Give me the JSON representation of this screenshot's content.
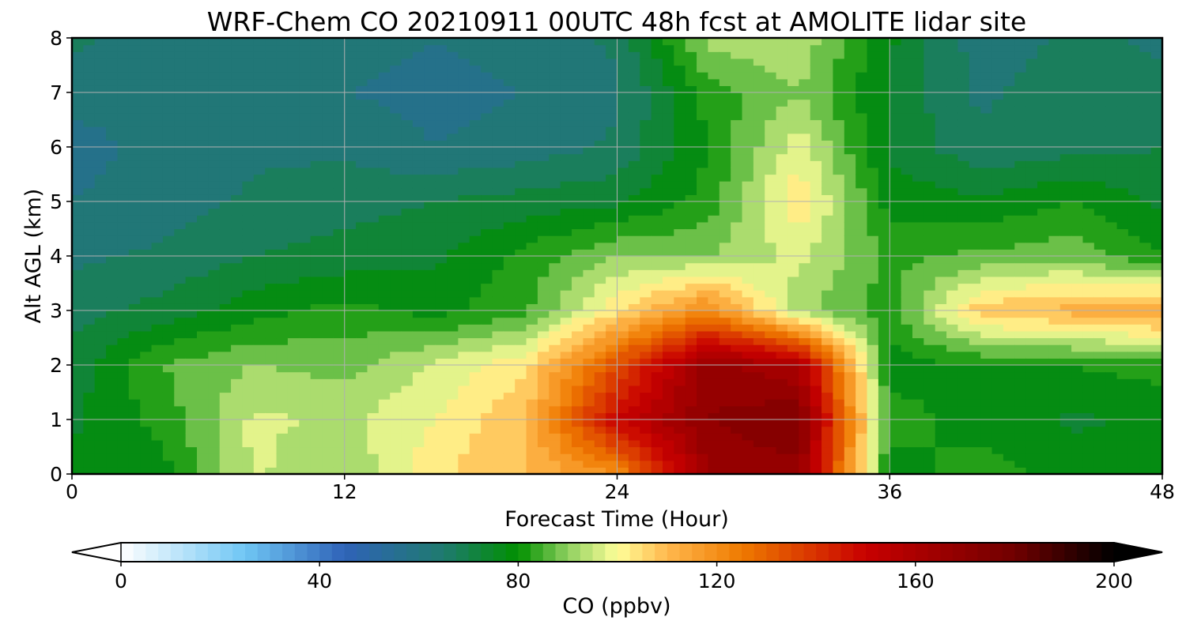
{
  "chart_data": {
    "type": "heatmap",
    "title": "WRF-Chem CO  20210911 00UTC 48h fcst at AMOLITE lidar site",
    "xlabel": "Forecast Time (Hour)",
    "ylabel": "Alt AGL (km)",
    "xlim": [
      0,
      48
    ],
    "ylim": [
      0,
      8
    ],
    "x_ticks": [
      "0",
      "12",
      "24",
      "36",
      "48"
    ],
    "y_ticks": [
      "0",
      "1",
      "2",
      "3",
      "4",
      "5",
      "6",
      "7",
      "8"
    ],
    "grid": true,
    "x": [
      0,
      4,
      8,
      12,
      16,
      20,
      24,
      28,
      32,
      36,
      40,
      44,
      48
    ],
    "y": [
      0,
      1,
      2,
      3,
      4,
      5,
      6,
      7,
      8
    ],
    "z": [
      [
        76,
        78,
        96,
        90,
        104,
        110,
        120,
        165,
        168,
        78,
        82,
        78,
        80
      ],
      [
        74,
        82,
        96,
        94,
        100,
        110,
        150,
        170,
        175,
        82,
        78,
        74,
        76
      ],
      [
        72,
        85,
        90,
        88,
        96,
        104,
        134,
        168,
        160,
        78,
        80,
        80,
        82
      ],
      [
        68,
        72,
        78,
        82,
        78,
        84,
        104,
        122,
        92,
        82,
        108,
        112,
        116
      ],
      [
        64,
        66,
        70,
        72,
        74,
        82,
        90,
        90,
        96,
        84,
        86,
        88,
        80
      ],
      [
        60,
        62,
        66,
        68,
        70,
        72,
        74,
        82,
        104,
        78,
        76,
        80,
        74
      ],
      [
        58,
        62,
        64,
        64,
        60,
        62,
        66,
        80,
        98,
        74,
        66,
        68,
        70
      ],
      [
        62,
        60,
        62,
        60,
        58,
        60,
        64,
        82,
        90,
        74,
        64,
        68,
        66
      ],
      [
        66,
        62,
        60,
        62,
        60,
        62,
        66,
        92,
        94,
        76,
        62,
        66,
        64
      ]
    ],
    "colorbar": {
      "label": "CO  (ppbv)",
      "min": 0,
      "max": 200,
      "ticks": [
        "0",
        "40",
        "80",
        "120",
        "160",
        "200"
      ],
      "extend": "both",
      "colors": [
        "#ffffff",
        "#6fc6f4",
        "#2f63b8",
        "#1f7a6e",
        "#009000",
        "#8fd060",
        "#ffff99",
        "#ffb84d",
        "#ef7a00",
        "#c80000",
        "#700000",
        "#000000"
      ],
      "stops": [
        0,
        25,
        45,
        65,
        80,
        90,
        100,
        110,
        125,
        150,
        180,
        200
      ]
    }
  }
}
